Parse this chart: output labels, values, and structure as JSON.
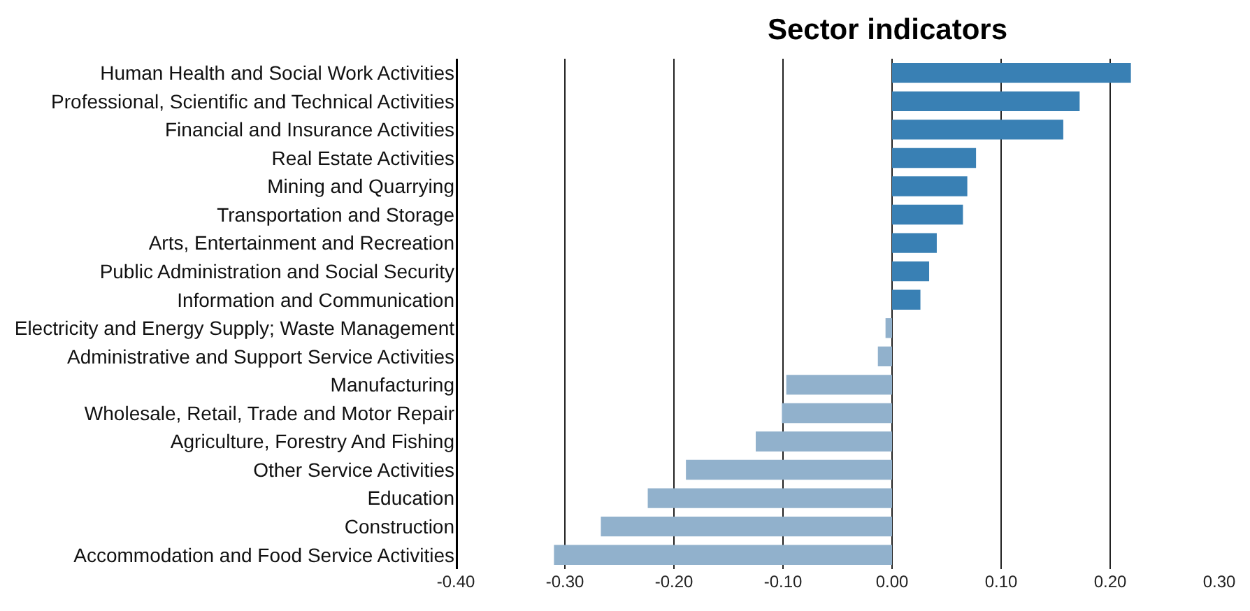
{
  "chart_data": {
    "type": "bar",
    "orientation": "horizontal",
    "title": "Sector indicators",
    "categories": [
      "Human Health and Social Work Activities",
      "Professional, Scientific and Technical Activities",
      "Financial and Insurance Activities",
      "Real Estate Activities",
      "Mining and Quarrying",
      "Transportation and Storage",
      "Arts, Entertainment and Recreation",
      "Public Administration and Social Security",
      "Information and Communication",
      "Electricity and Energy Supply; Waste Management",
      "Administrative and Support Service Activities",
      "Manufacturing",
      "Wholesale, Retail, Trade and Motor Repair",
      "Agriculture, Forestry And Fishing",
      "Other Service Activities",
      "Education",
      "Construction",
      "Accommodation and Food Service Activities"
    ],
    "values": [
      0.219,
      0.172,
      0.157,
      0.077,
      0.069,
      0.065,
      0.041,
      0.034,
      0.026,
      -0.006,
      -0.013,
      -0.097,
      -0.101,
      -0.125,
      -0.189,
      -0.224,
      -0.267,
      -0.31
    ],
    "colors": [
      "#3980b4",
      "#3980b4",
      "#3980b4",
      "#3980b4",
      "#3980b4",
      "#3980b4",
      "#3980b4",
      "#3980b4",
      "#3980b4",
      "#91b1cc",
      "#91b1cc",
      "#91b1cc",
      "#91b1cc",
      "#91b1cc",
      "#91b1cc",
      "#91b1cc",
      "#91b1cc",
      "#91b1cc"
    ],
    "xlim": [
      -0.4,
      0.3
    ],
    "xticks": [
      {
        "value": -0.4,
        "label": "-0.40"
      },
      {
        "value": -0.3,
        "label": "-0.30"
      },
      {
        "value": -0.2,
        "label": "-0.20"
      },
      {
        "value": -0.1,
        "label": "-0.10"
      },
      {
        "value": 0,
        "label": "0.00"
      },
      {
        "value": 0.1,
        "label": "0.10"
      },
      {
        "value": 0.2,
        "label": "0.20"
      },
      {
        "value": 0.3,
        "label": "0.30"
      }
    ],
    "grid": "x"
  }
}
